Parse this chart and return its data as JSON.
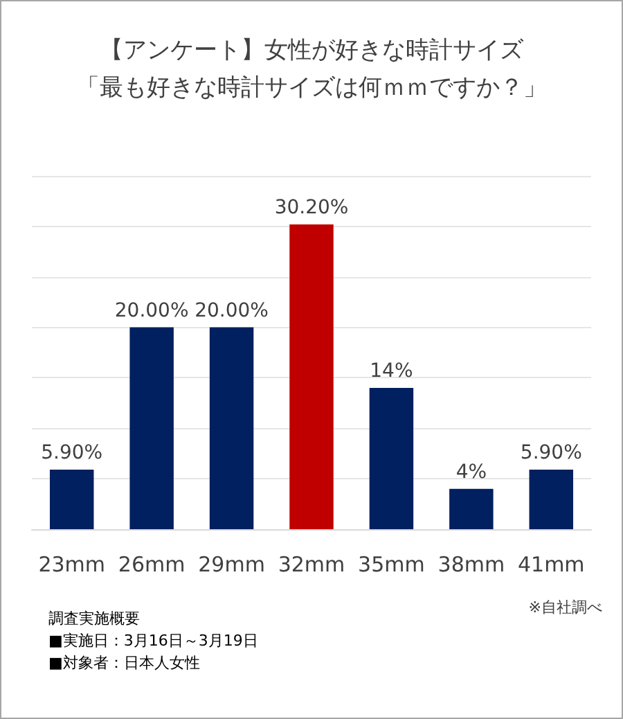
{
  "chart_data": {
    "type": "bar",
    "title": "【アンケート】女性が好きな時計サイズ",
    "subtitle": "「最も好きな時計サイズは何ｍｍですか？」",
    "categories": [
      "23mm",
      "26mm",
      "29mm",
      "32mm",
      "35mm",
      "38mm",
      "41mm"
    ],
    "values": [
      5.9,
      20,
      20,
      30.2,
      14,
      4,
      5.9
    ],
    "colors": [
      "#002060",
      "#002060",
      "#002060",
      "#c00000",
      "#002060",
      "#002060",
      "#002060"
    ],
    "value_labels": [
      "5.90%",
      "20.00%",
      "20.00%",
      "30.20%",
      "14%",
      "4%",
      "5.90%"
    ],
    "ylim": [
      0,
      35
    ],
    "yticks": [
      {
        "value": 0,
        "label": null
      },
      {
        "value": 5,
        "label": null
      },
      {
        "value": 10,
        "label": null
      },
      {
        "value": 15,
        "label": null
      },
      {
        "value": 20,
        "label": null
      },
      {
        "value": 25,
        "label": null
      },
      {
        "value": 30,
        "label": null
      },
      {
        "value": 35,
        "label": null
      }
    ],
    "tick_labels": "x",
    "grid": "y",
    "annotations": [
      "※自社調べ",
      "調査実施概要",
      "■実施日：3月16日～3月19日",
      "■対象者：日本人女性"
    ]
  }
}
